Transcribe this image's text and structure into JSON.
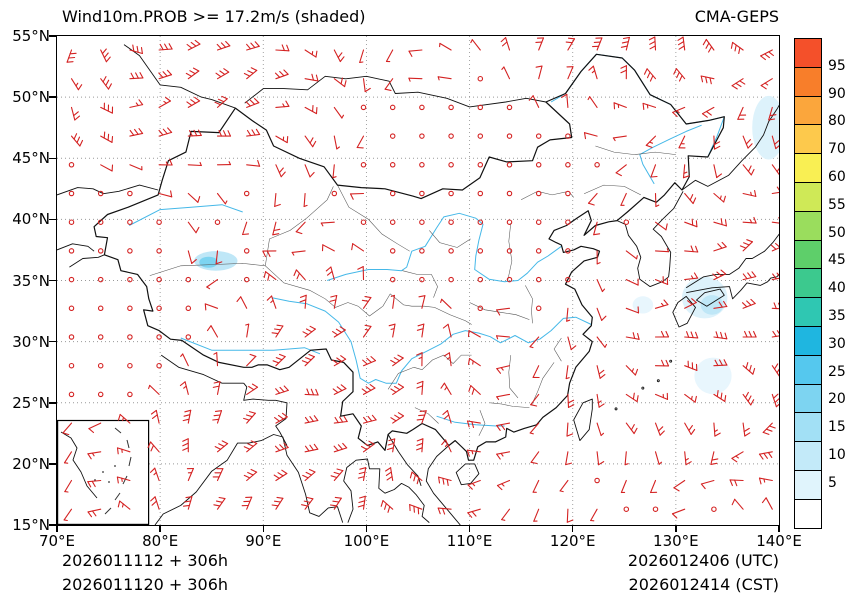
{
  "title": "Wind10m.PROB >= 17.2m/s (shaded)",
  "model": "CMA-GEPS",
  "footer": {
    "init_utc": "2026011112 + 306h",
    "init_cst": "2026011120 + 306h",
    "valid_utc": "2026012406 (UTC)",
    "valid_cst": "2026012414 (CST)"
  },
  "axes": {
    "lon_min": 70,
    "lon_max": 140,
    "lat_min": 15,
    "lat_max": 55,
    "lat_ticks": [
      {
        "value": 55,
        "label": "55°N"
      },
      {
        "value": 50,
        "label": "50°N"
      },
      {
        "value": 45,
        "label": "45°N"
      },
      {
        "value": 40,
        "label": "40°N"
      },
      {
        "value": 35,
        "label": "35°N"
      },
      {
        "value": 30,
        "label": "30°N"
      },
      {
        "value": 25,
        "label": "25°N"
      },
      {
        "value": 20,
        "label": "20°N"
      },
      {
        "value": 15,
        "label": "15°N"
      }
    ],
    "lon_ticks": [
      {
        "value": 70,
        "label": "70°E"
      },
      {
        "value": 80,
        "label": "80°E"
      },
      {
        "value": 90,
        "label": "90°E"
      },
      {
        "value": 100,
        "label": "100°E"
      },
      {
        "value": 110,
        "label": "110°E"
      },
      {
        "value": 120,
        "label": "120°E"
      },
      {
        "value": 130,
        "label": "130°E"
      },
      {
        "value": 140,
        "label": "140°E"
      }
    ]
  },
  "colorbar": {
    "labels_top_to_bottom": [
      "95",
      "90",
      "80",
      "70",
      "60",
      "55",
      "50",
      "45",
      "40",
      "35",
      "30",
      "25",
      "20",
      "15",
      "10",
      "5"
    ],
    "cell_colors_top_to_bottom": [
      "#f4502a",
      "#f87e2a",
      "#fba63c",
      "#fdc94c",
      "#f9ef53",
      "#cfe957",
      "#9add5d",
      "#5ecf6a",
      "#3cc98e",
      "#2fc7b2",
      "#1fb6e0",
      "#55c8ee",
      "#7dd4f1",
      "#a2e0f5",
      "#c3eaf9",
      "#e0f4fc",
      "#ffffff"
    ]
  },
  "colors": {
    "background": "#ffffff",
    "text": "#000000",
    "barb": "#d42222",
    "river": "#45b8e8",
    "border": "#111111",
    "province": "#555555",
    "grid": "#999999"
  },
  "wind_barbs": {
    "color": "#d42222",
    "grid_cols": 25,
    "grid_rows": 17,
    "note": "red wind barbs on a regular grid; open circles where winds are calm"
  },
  "shading_patches": [
    {
      "lon": 85.4,
      "lat": 36.6,
      "rx_deg": 2.1,
      "ry_deg": 0.8,
      "color": "#bfe7f7"
    },
    {
      "lon": 84.7,
      "lat": 36.5,
      "rx_deg": 0.9,
      "ry_deg": 0.45,
      "color": "#7dd4f1"
    },
    {
      "lon": 132.8,
      "lat": 33.6,
      "rx_deg": 2.2,
      "ry_deg": 1.7,
      "color": "#ddf2fb"
    },
    {
      "lon": 133.5,
      "lat": 33.0,
      "rx_deg": 1.1,
      "ry_deg": 0.8,
      "color": "#bfe7f7"
    },
    {
      "lon": 139.0,
      "lat": 47.5,
      "rx_deg": 1.6,
      "ry_deg": 2.6,
      "color": "#ddf2fb"
    },
    {
      "lon": 133.6,
      "lat": 27.2,
      "rx_deg": 1.8,
      "ry_deg": 1.5,
      "color": "#e8f6fd"
    },
    {
      "lon": 126.8,
      "lat": 33.0,
      "rx_deg": 1.0,
      "ry_deg": 0.7,
      "color": "#e8f6fd"
    }
  ],
  "chart_data": {
    "type": "map",
    "variable": "10 m wind speed probability >= 17.2 m/s (shaded)",
    "units": "%",
    "model": "CMA-GEPS",
    "region": "China and surrounding areas",
    "lon_range_deg_e": [
      70,
      140
    ],
    "lat_range_deg_n": [
      15,
      55
    ],
    "probability_scale_percent": [
      5,
      10,
      15,
      20,
      25,
      30,
      35,
      40,
      45,
      50,
      55,
      60,
      70,
      80,
      90,
      95
    ],
    "init_times": [
      "2026011112 + 306h (UTC)",
      "2026011120 + 306h (CST)"
    ],
    "valid_times": [
      "2026012406 (UTC)",
      "2026012414 (CST)"
    ],
    "shaded_areas": "small low-probability (5-25%) patches near 85°E/36.5°N, over the sea east of 130°E near 33°N and 27°N, and near 139°E/47.5°N"
  }
}
